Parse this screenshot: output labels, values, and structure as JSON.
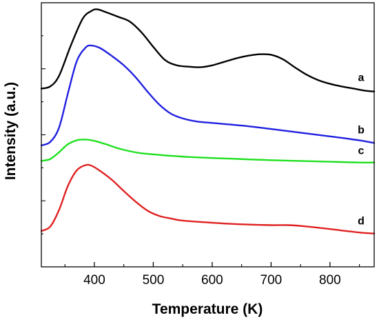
{
  "chart_data": {
    "type": "line",
    "title": "",
    "xlabel": "Temperature (K)",
    "ylabel": "Intensity (a.u.)",
    "xlim": [
      310,
      875
    ],
    "ylim": [
      0,
      100
    ],
    "x_ticks": [
      400,
      500,
      600,
      700,
      800
    ],
    "y_ticks_labeled": false,
    "grid": false,
    "legend": "labels at right end of each curve",
    "series": [
      {
        "name": "a",
        "color": "#000000",
        "x": [
          310,
          325,
          340,
          360,
          380,
          395,
          405,
          420,
          440,
          460,
          480,
          500,
          520,
          540,
          560,
          580,
          600,
          620,
          640,
          660,
          680,
          700,
          720,
          740,
          760,
          780,
          800,
          820,
          840,
          860,
          875
        ],
        "y": [
          67.5,
          68.3,
          72.3,
          83.8,
          93.9,
          96.9,
          97.5,
          96.4,
          94.7,
          92.9,
          88.8,
          83.3,
          78.3,
          76.3,
          75.8,
          75.6,
          76.3,
          77.6,
          78.9,
          79.9,
          80.5,
          80.3,
          78.6,
          75.6,
          72.8,
          70.7,
          69.3,
          68.3,
          67.5,
          66.7,
          66.4
        ]
      },
      {
        "name": "b",
        "color": "#1f1fe0",
        "x": [
          310,
          325,
          340,
          355,
          370,
          385,
          395,
          410,
          430,
          450,
          470,
          490,
          510,
          530,
          550,
          575,
          600,
          650,
          700,
          750,
          800,
          850,
          875
        ],
        "y": [
          46.0,
          47.3,
          52.7,
          65.6,
          77.8,
          83.0,
          83.8,
          82.8,
          79.8,
          76.3,
          71.8,
          66.4,
          61.5,
          58.0,
          56.2,
          55.0,
          54.5,
          53.5,
          52.2,
          50.8,
          49.4,
          47.9,
          46.9
        ]
      },
      {
        "name": "c",
        "color": "#1ee01e",
        "x": [
          310,
          325,
          340,
          355,
          370,
          385,
          400,
          420,
          440,
          460,
          480,
          500,
          520,
          540,
          560,
          600,
          650,
          700,
          750,
          800,
          850,
          875
        ],
        "y": [
          40.1,
          40.8,
          43.4,
          46.4,
          47.9,
          48.2,
          47.7,
          46.4,
          44.9,
          43.8,
          43.0,
          42.6,
          42.2,
          41.9,
          41.6,
          41.2,
          40.8,
          40.4,
          40.1,
          39.8,
          39.5,
          39.5
        ]
      },
      {
        "name": "d",
        "color": "#e02020",
        "x": [
          310,
          325,
          340,
          355,
          370,
          385,
          395,
          410,
          430,
          450,
          470,
          490,
          510,
          530,
          550,
          600,
          650,
          700,
          730,
          760,
          800,
          850,
          875
        ],
        "y": [
          13.6,
          15.2,
          21.5,
          30.6,
          36.5,
          38.5,
          38.3,
          36.3,
          32.9,
          28.7,
          24.7,
          21.3,
          19.3,
          18.3,
          17.5,
          16.7,
          16.1,
          15.8,
          15.8,
          15.3,
          14.3,
          13.0,
          12.6
        ]
      }
    ]
  }
}
